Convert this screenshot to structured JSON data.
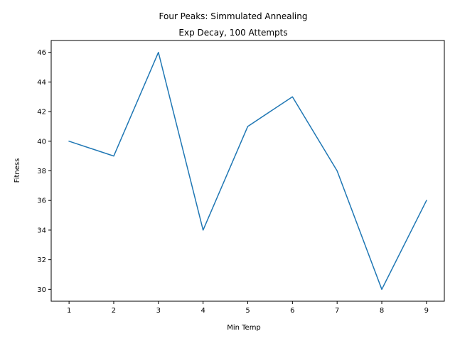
{
  "chart_data": {
    "type": "line",
    "title": "Four Peaks: Simmulated Annealing",
    "subtitle": "Exp Decay, 100 Attempts",
    "xlabel": "Min Temp",
    "ylabel": "Fitness",
    "x": [
      1,
      2,
      3,
      4,
      5,
      6,
      7,
      8,
      9
    ],
    "series": [
      {
        "values": [
          40,
          39,
          46,
          34,
          41,
          43,
          38,
          30,
          36
        ],
        "color": "#1f77b4"
      }
    ],
    "xlim": [
      0.6,
      9.4
    ],
    "ylim": [
      29.2,
      46.8
    ],
    "xticks": [
      1,
      2,
      3,
      4,
      5,
      6,
      7,
      8,
      9
    ],
    "yticks": [
      30,
      32,
      34,
      36,
      38,
      40,
      42,
      44,
      46
    ],
    "grid": false
  }
}
